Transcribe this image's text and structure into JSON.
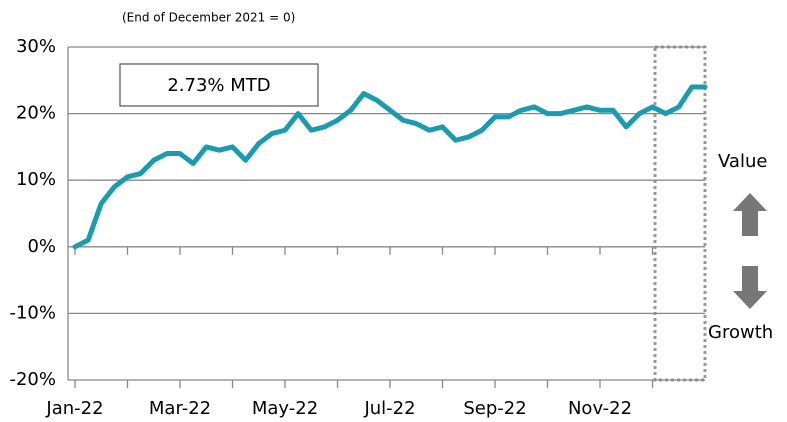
{
  "chart_data": {
    "type": "line",
    "subtitle": "(End of December 2021 = 0)",
    "annotation": "2.73% MTD",
    "side_labels": [
      "Value",
      "Growth"
    ],
    "categories": [
      "Jan-22",
      null,
      null,
      null,
      null,
      null,
      null,
      null,
      "Mar-22",
      null,
      null,
      null,
      null,
      null,
      null,
      null,
      "May-22",
      null,
      null,
      null,
      null,
      null,
      null,
      null,
      "Jul-22",
      null,
      null,
      null,
      null,
      null,
      null,
      null,
      "Sep-22",
      null,
      null,
      null,
      null,
      null,
      null,
      null,
      "Nov-22",
      null,
      null,
      null,
      null,
      null,
      null,
      null,
      null
    ],
    "series": [
      {
        "color": "#1a9bb0",
        "values": [
          0,
          1,
          6.5,
          9,
          10.5,
          11,
          13,
          14,
          14,
          12.5,
          15,
          14.5,
          15,
          13,
          15.5,
          17,
          17.5,
          20,
          17.5,
          18,
          19,
          20.5,
          23,
          22,
          20.5,
          19,
          18.5,
          17.5,
          18,
          16,
          16.5,
          17.5,
          19.5,
          19.5,
          20.5,
          21,
          20,
          20,
          20.5,
          21,
          20.5,
          20.5,
          18,
          20,
          21,
          20,
          21,
          24,
          24
        ]
      }
    ],
    "ylim": [
      -20,
      30
    ],
    "yticks": [
      {
        "value": -20,
        "label": "-20%"
      },
      {
        "value": -10,
        "label": "-10%"
      },
      {
        "value": 0,
        "label": "0%"
      },
      {
        "value": 10,
        "label": "10%"
      },
      {
        "value": 20,
        "label": "20%"
      },
      {
        "value": 30,
        "label": "30%"
      }
    ],
    "grid": true
  }
}
